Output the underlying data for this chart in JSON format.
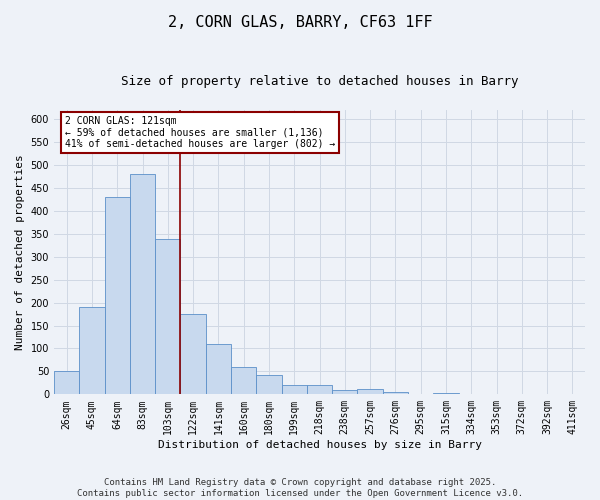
{
  "title": "2, CORN GLAS, BARRY, CF63 1FF",
  "subtitle": "Size of property relative to detached houses in Barry",
  "xlabel": "Distribution of detached houses by size in Barry",
  "ylabel": "Number of detached properties",
  "categories": [
    "26sqm",
    "45sqm",
    "64sqm",
    "83sqm",
    "103sqm",
    "122sqm",
    "141sqm",
    "160sqm",
    "180sqm",
    "199sqm",
    "218sqm",
    "238sqm",
    "257sqm",
    "276sqm",
    "295sqm",
    "315sqm",
    "334sqm",
    "353sqm",
    "372sqm",
    "392sqm",
    "411sqm"
  ],
  "values": [
    50,
    190,
    430,
    480,
    338,
    175,
    110,
    60,
    43,
    20,
    20,
    10,
    11,
    5,
    0,
    2,
    1,
    0,
    0,
    0,
    0
  ],
  "bar_color": "#c8d9ee",
  "bar_edge_color": "#5b8fc9",
  "grid_color": "#d0d8e4",
  "background_color": "#eef2f8",
  "vline_x_index": 4.5,
  "vline_color": "#8b0000",
  "annotation_text": "2 CORN GLAS: 121sqm\n← 59% of detached houses are smaller (1,136)\n41% of semi-detached houses are larger (802) →",
  "annotation_box_color": "#8b0000",
  "annotation_bg": "#ffffff",
  "footnote": "Contains HM Land Registry data © Crown copyright and database right 2025.\nContains public sector information licensed under the Open Government Licence v3.0.",
  "ylim": [
    0,
    620
  ],
  "yticks": [
    0,
    50,
    100,
    150,
    200,
    250,
    300,
    350,
    400,
    450,
    500,
    550,
    600
  ],
  "title_fontsize": 11,
  "subtitle_fontsize": 9,
  "footnote_fontsize": 6.5,
  "tick_fontsize": 7,
  "label_fontsize": 8,
  "annotation_fontsize": 7
}
